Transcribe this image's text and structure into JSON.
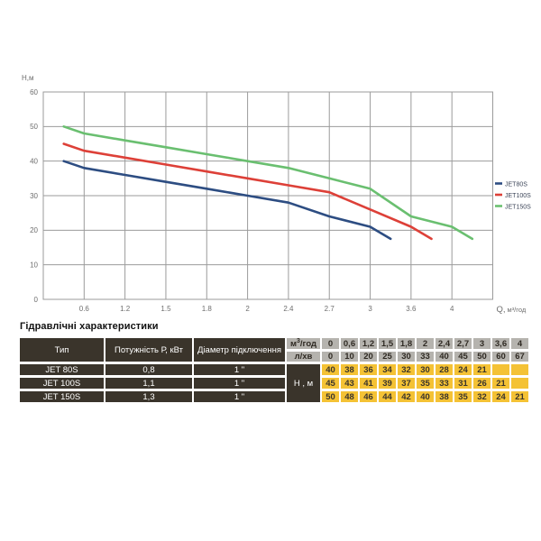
{
  "chart": {
    "y_axis_label": "Н,м",
    "x_axis_label_q": "Q,",
    "x_axis_label_unit": "м³/год",
    "y_ticks": [
      "60",
      "50",
      "40",
      "30",
      "20",
      "10",
      "0"
    ],
    "x_ticks": [
      "0.6",
      "1.2",
      "1.5",
      "1.8",
      "2",
      "2.4",
      "2.7",
      "3",
      "3.6",
      "4"
    ],
    "grid_color": "#9b9b9b",
    "tick_color": "#6e6e6e",
    "legend_text_color": "#3d4659"
  },
  "chart_data": {
    "type": "line",
    "title": "",
    "xlabel": "Q, м³/год",
    "ylabel": "Н,м",
    "x_categories": [
      "0",
      "0.6",
      "1.2",
      "1.5",
      "1.8",
      "2",
      "2.4",
      "2.7",
      "3",
      "3.6",
      "4"
    ],
    "ylim": [
      0,
      60
    ],
    "y_tick_step": 10,
    "grid": true,
    "legend_position": "right",
    "series": [
      {
        "name": "JET80S",
        "color": "#2d4d82",
        "values": [
          40,
          38,
          36,
          34,
          32,
          30,
          28,
          24,
          21,
          null,
          null
        ]
      },
      {
        "name": "JET100S",
        "color": "#dd4038",
        "values": [
          45,
          43,
          41,
          39,
          37,
          35,
          33,
          31,
          26,
          21,
          null
        ]
      },
      {
        "name": "JET150S",
        "color": "#6abf70",
        "values": [
          50,
          48,
          46,
          44,
          42,
          40,
          38,
          35,
          32,
          24,
          21
        ]
      }
    ]
  },
  "table": {
    "title": "Гідравлічні характеристики",
    "col_headers": [
      "Тип",
      "Потужність  Р, кВт",
      "Діаметр підключення"
    ],
    "flow_rows": [
      {
        "label": "м³/год",
        "values": [
          "0",
          "0,6",
          "1,2",
          "1,5",
          "1,8",
          "2",
          "2,4",
          "2,7",
          "3",
          "3,6",
          "4"
        ]
      },
      {
        "label": "л/хв",
        "values": [
          "0",
          "10",
          "20",
          "25",
          "30",
          "33",
          "40",
          "45",
          "50",
          "60",
          "67"
        ]
      }
    ],
    "head_unit_label": "Н , м",
    "rows": [
      {
        "type": "JET 80S",
        "power": "0,8",
        "diameter": "1 \"",
        "head": [
          "40",
          "38",
          "36",
          "34",
          "32",
          "30",
          "28",
          "24",
          "21",
          "",
          ""
        ]
      },
      {
        "type": "JET 100S",
        "power": "1,1",
        "diameter": "1 \"",
        "head": [
          "45",
          "43",
          "41",
          "39",
          "37",
          "35",
          "33",
          "31",
          "26",
          "21",
          ""
        ]
      },
      {
        "type": "JET 150S",
        "power": "1,3",
        "diameter": "1 \"",
        "head": [
          "50",
          "48",
          "46",
          "44",
          "42",
          "40",
          "38",
          "35",
          "32",
          "24",
          "21"
        ]
      }
    ],
    "colors": {
      "dark": "#3a342b",
      "gray": "#b5b3ae",
      "yellow": "#f4c235"
    }
  }
}
